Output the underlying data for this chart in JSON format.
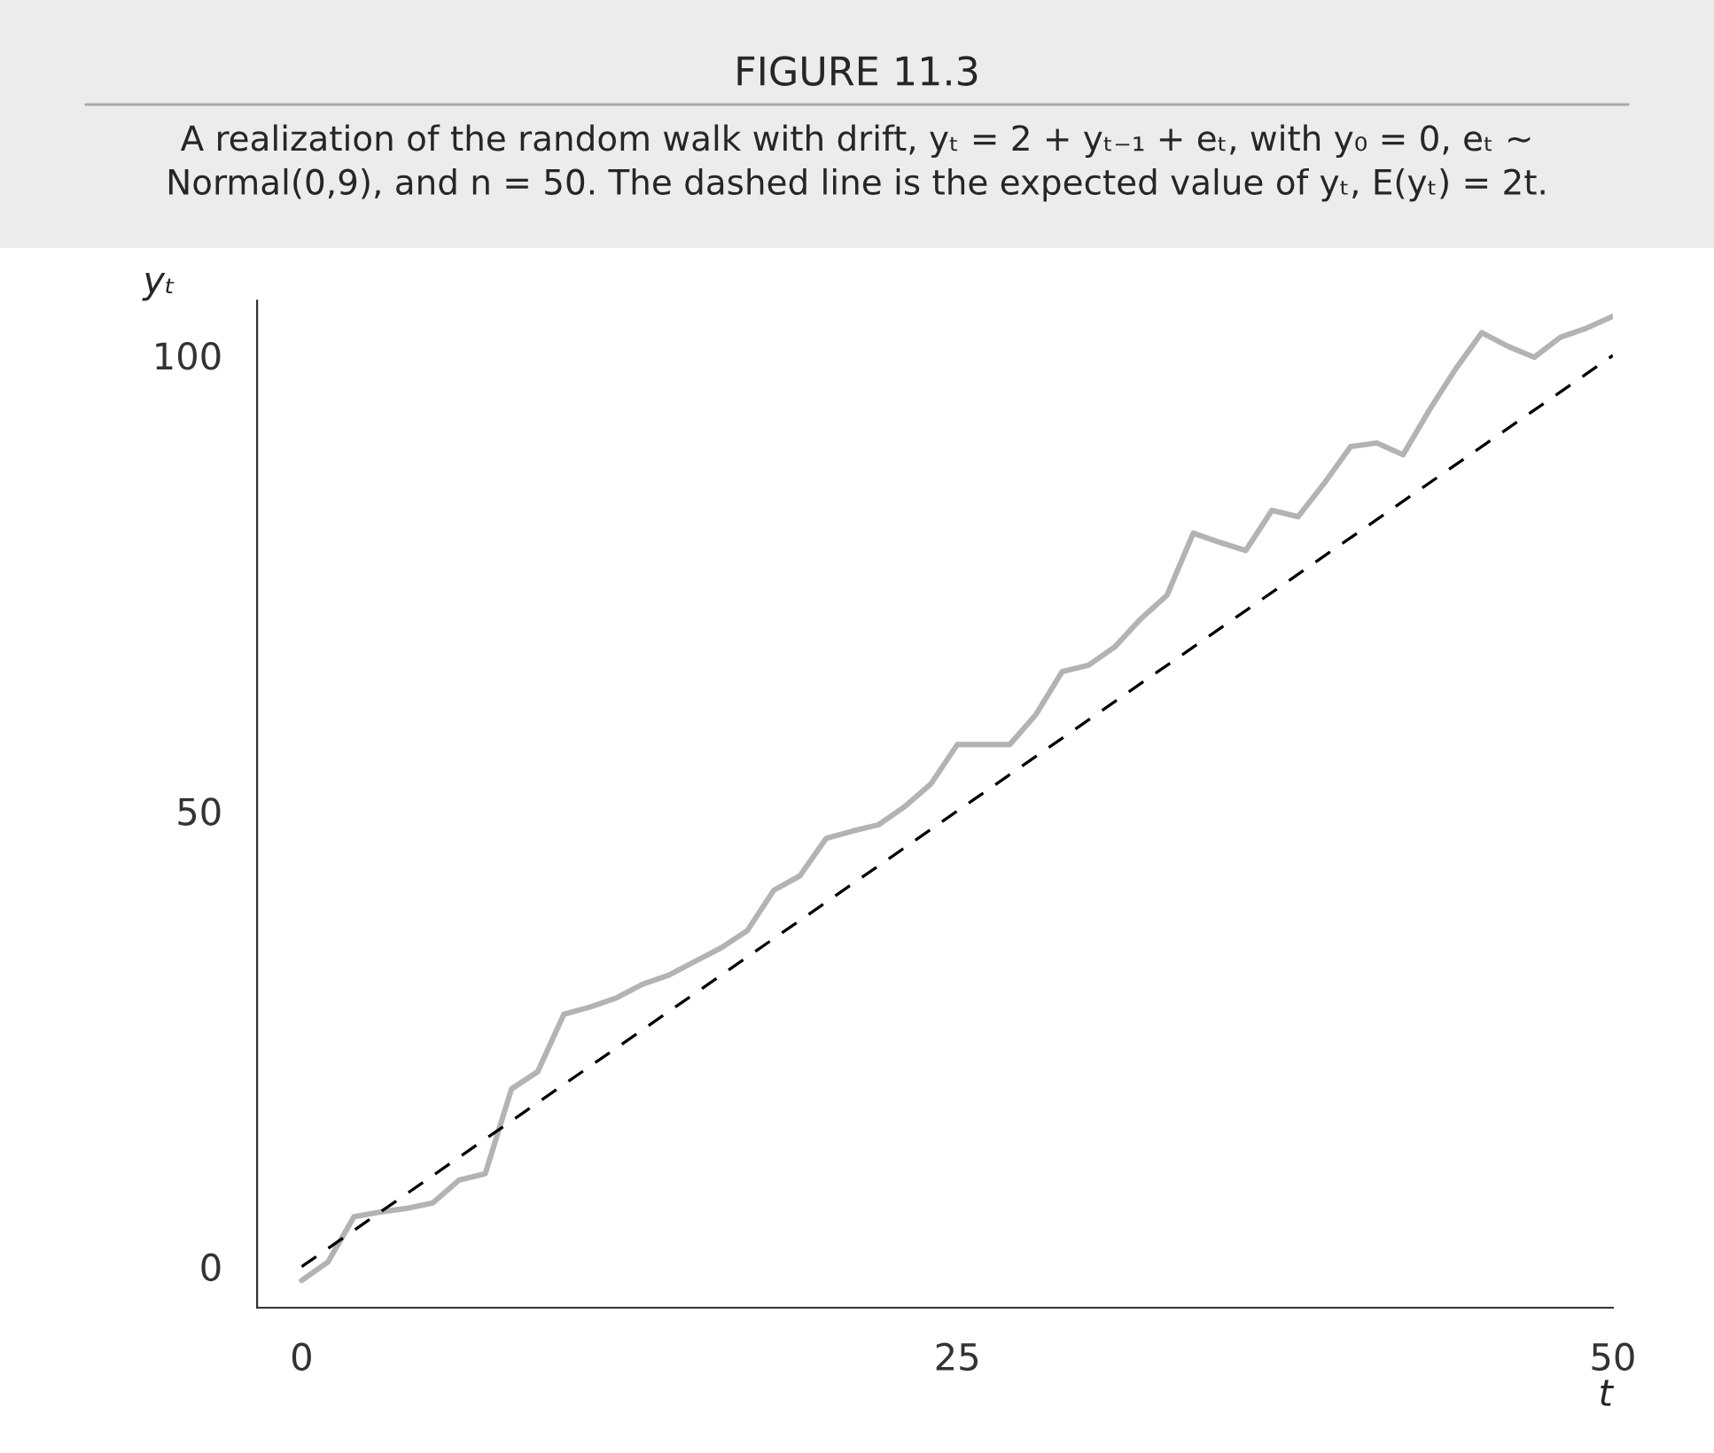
{
  "chart_data": {
    "type": "line",
    "title": "FIGURE 11.3",
    "subtitle": "A realization of the random walk with drift, yₜ = 2 + yₜ₋₁ + eₜ, with y₀ = 0, eₜ ~\nNormal(0,9), and n = 50. The dashed line is the expected value of yₜ, E(yₜ) = 2t.",
    "xlabel": "t",
    "ylabel": "yₜ",
    "series": [
      {
        "x": [
          0,
          1,
          2,
          3,
          4,
          5,
          6,
          7,
          8,
          9,
          10,
          11,
          12,
          13,
          14,
          15,
          16,
          17,
          18,
          19,
          20,
          21,
          22,
          23,
          24,
          25,
          26,
          27,
          28,
          29,
          30,
          31,
          32,
          33,
          34,
          35,
          36,
          37,
          38,
          39,
          40,
          41,
          42,
          43,
          44,
          45,
          46,
          47,
          48,
          49,
          50
        ],
        "values": [
          -1.5,
          0.5,
          5.5,
          6,
          6.4,
          7,
          9.5,
          10.2,
          19.5,
          21.4,
          27.7,
          28.5,
          29.5,
          31,
          32,
          33.5,
          35,
          36.9,
          41.3,
          42.9,
          47,
          47.8,
          48.5,
          50.5,
          53,
          57.3,
          57.3,
          57.3,
          60.6,
          65.3,
          66,
          68,
          71.1,
          73.7,
          80.5,
          79.5,
          78.6,
          83,
          82.3,
          86,
          90,
          90.4,
          89.1,
          94,
          98.5,
          102.5,
          101,
          99.8,
          102,
          103,
          104.3
        ],
        "color": "#b3b3b3",
        "line_style": "solid"
      },
      {
        "x": [
          0,
          50
        ],
        "values": [
          0,
          100
        ],
        "color": "#000000",
        "line_style": "dashed"
      }
    ],
    "xlim": [
      -1.7,
      50
    ],
    "ylim": [
      -4.5,
      106
    ],
    "xticks": [
      0,
      25,
      50
    ],
    "yticks": [
      0,
      50,
      100
    ],
    "grid": false,
    "legend": false,
    "marker": "none"
  }
}
